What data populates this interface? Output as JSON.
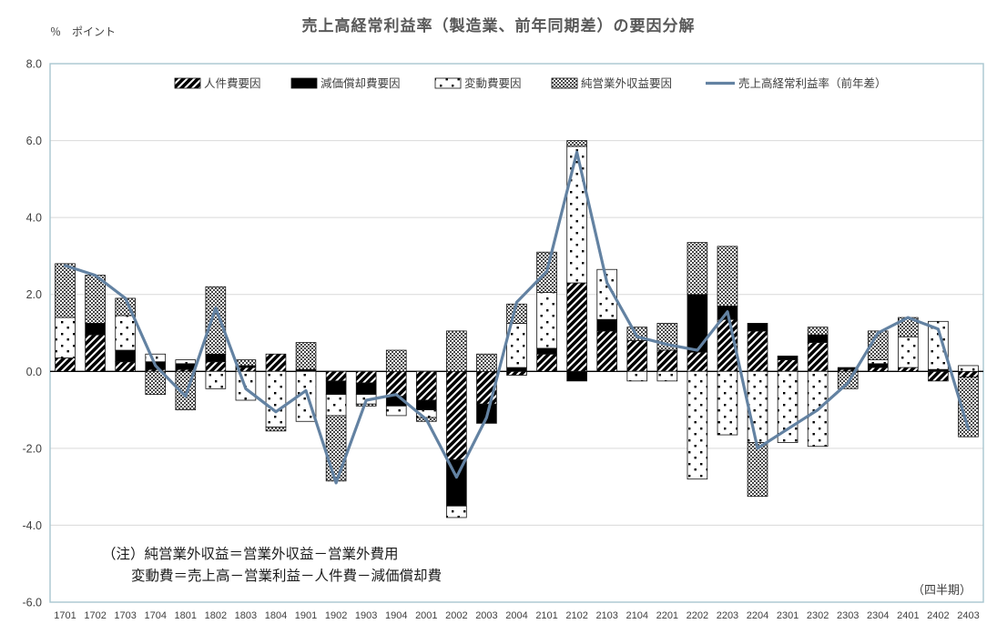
{
  "title": "売上高経常利益率（製造業、前年同期差）の要因分解",
  "axis_unit": "％　ポイント",
  "note": {
    "line1": "（注）純営業外収益＝営業外収益－営業外費用",
    "line2": "変動費＝売上高－営業利益－人件費－減価償却費"
  },
  "footer_axis_label": "（四半期）",
  "colors": {
    "line": "#6382a2",
    "grid": "#d9d9d9",
    "plot_border": "#a8c6d0",
    "zero_axis": "#000000",
    "title_text": "#595959",
    "axis_text": "#404040"
  },
  "chart_data": {
    "type": "bar",
    "subtype": "stacked-bar-with-line",
    "categories": [
      "1701",
      "1702",
      "1703",
      "1704",
      "1801",
      "1802",
      "1803",
      "1804",
      "1901",
      "1902",
      "1903",
      "1904",
      "2001",
      "2002",
      "2003",
      "2004",
      "2101",
      "2102",
      "2103",
      "2104",
      "2201",
      "2202",
      "2203",
      "2204",
      "2301",
      "2302",
      "2303",
      "2304",
      "2401",
      "2402",
      "2403"
    ],
    "series": [
      {
        "name": "人件費要因",
        "pattern": "hatch",
        "values": [
          0.35,
          0.95,
          0.25,
          0.05,
          0.05,
          0.25,
          0.1,
          0.45,
          0.0,
          -0.25,
          -0.3,
          -0.65,
          -0.75,
          -2.3,
          -0.85,
          -0.1,
          0.45,
          2.3,
          1.05,
          0.8,
          0.55,
          0.5,
          1.35,
          1.05,
          0.3,
          0.75,
          0.05,
          0.1,
          0.1,
          -0.25,
          -0.15
        ]
      },
      {
        "name": "減価償却費要因",
        "pattern": "solid-black",
        "values": [
          0.0,
          0.3,
          0.3,
          0.2,
          0.15,
          0.2,
          0.05,
          0.0,
          0.05,
          -0.35,
          -0.3,
          -0.25,
          -0.25,
          -1.2,
          -0.5,
          0.1,
          0.15,
          -0.25,
          0.3,
          0.0,
          0.0,
          1.5,
          0.35,
          0.2,
          0.1,
          0.2,
          0.05,
          0.1,
          0.0,
          0.05,
          0.0
        ]
      },
      {
        "name": "変動費要因",
        "pattern": "dots",
        "values": [
          1.05,
          0.0,
          0.9,
          0.2,
          0.1,
          -0.45,
          -0.75,
          -1.45,
          -1.3,
          -0.55,
          -0.25,
          -0.25,
          -0.2,
          -0.3,
          0.0,
          1.15,
          1.45,
          3.55,
          1.3,
          -0.25,
          -0.25,
          -2.8,
          -1.65,
          -1.85,
          -1.85,
          -1.95,
          0.0,
          0.1,
          0.8,
          1.25,
          0.15
        ]
      },
      {
        "name": "純営業外収益要因",
        "pattern": "crosshatch",
        "values": [
          1.4,
          1.25,
          0.45,
          -0.6,
          -1.0,
          1.75,
          0.15,
          -0.1,
          0.7,
          -1.7,
          -0.05,
          0.55,
          -0.1,
          1.05,
          0.45,
          0.5,
          1.05,
          0.15,
          0.0,
          0.35,
          0.7,
          1.35,
          1.55,
          -1.4,
          0.0,
          0.2,
          -0.45,
          0.75,
          0.5,
          0.0,
          -1.55
        ]
      }
    ],
    "line_series": {
      "name": "売上高経常利益率（前年差）",
      "values": [
        2.75,
        2.5,
        1.9,
        0.15,
        -0.65,
        1.65,
        -0.45,
        -1.05,
        -0.5,
        -2.9,
        -0.75,
        -0.6,
        -1.25,
        -2.75,
        -1.2,
        1.8,
        2.6,
        5.7,
        2.3,
        0.9,
        0.7,
        0.55,
        1.55,
        -2.0,
        -1.5,
        -1.0,
        -0.3,
        1.0,
        1.4,
        1.1,
        -1.5
      ]
    },
    "ylim": [
      -6.0,
      8.0
    ],
    "ytick_step": 2.0,
    "ytick_labels": [
      "8.0",
      "6.0",
      "4.0",
      "2.0",
      "0.0",
      "-2.0",
      "-4.0",
      "-6.0"
    ],
    "grid": true,
    "legend_position": "top-inside"
  }
}
